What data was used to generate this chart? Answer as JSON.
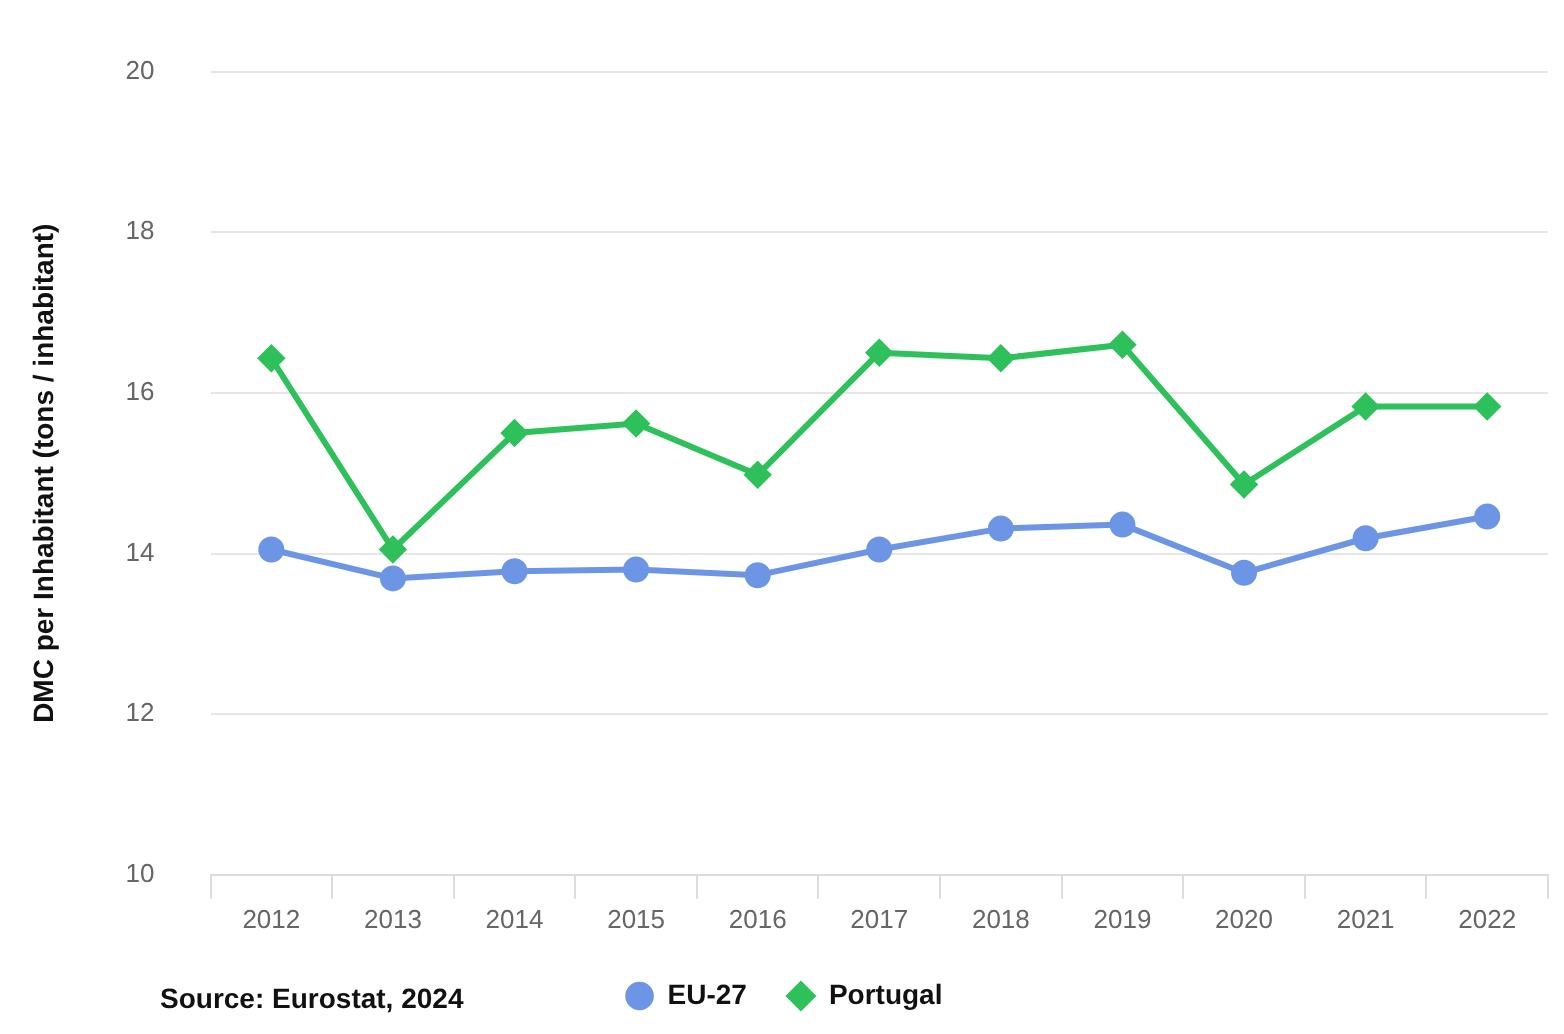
{
  "chart_data": {
    "type": "line",
    "ylabel": "DMC per Inhabitant (tons / inhabitant)",
    "categories": [
      "2012",
      "2013",
      "2014",
      "2015",
      "2016",
      "2017",
      "2018",
      "2019",
      "2020",
      "2021",
      "2022"
    ],
    "series": [
      {
        "name": "EU-27",
        "color": "#6d95e6",
        "marker": "circle",
        "values": [
          14.05,
          13.69,
          13.78,
          13.8,
          13.73,
          14.05,
          14.31,
          14.36,
          13.76,
          14.19,
          14.46
        ]
      },
      {
        "name": "Portugal",
        "color": "#2ec05a",
        "marker": "diamond",
        "values": [
          16.43,
          14.05,
          15.5,
          15.62,
          14.98,
          16.5,
          16.43,
          16.6,
          14.86,
          15.83,
          15.83
        ]
      }
    ],
    "ylim": [
      10,
      20
    ],
    "yticks": [
      10,
      12,
      14,
      16,
      18,
      20
    ],
    "grid": "y",
    "legend": "bottom",
    "line_style": "solid",
    "annotations": [
      "Source: Eurostat, 2024"
    ]
  }
}
